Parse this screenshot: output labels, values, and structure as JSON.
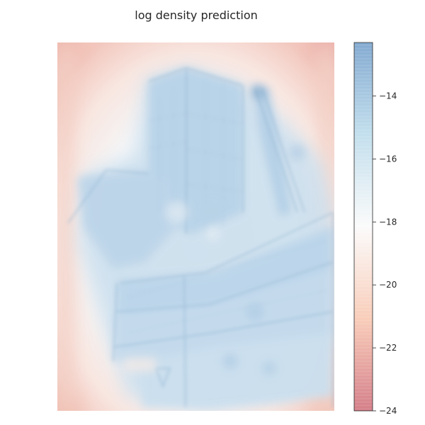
{
  "chart_data": {
    "type": "heatmap",
    "title": "log density prediction",
    "colormap": "RdBu (semi-transparent overlay on photograph)",
    "colorbar": {
      "range": [
        -24,
        -12.3
      ],
      "ticks": [
        -14,
        -16,
        -18,
        -20,
        -22,
        -24
      ],
      "tick_labels": [
        "−14",
        "−16",
        "−18",
        "−20",
        "−22",
        "−24"
      ],
      "colors": {
        "low": "#b2182b",
        "mid_low": "#f4a582",
        "mid": "#f7f7f7",
        "mid_high": "#92c5de",
        "high": "#2166ac"
      }
    },
    "image_content": "photograph of modern building with cantilevered sections and a crane-like tower, overlaid with density heatmap",
    "colors": {
      "sky_edge": "#f5d5cc",
      "building_high": "#a9c8e3",
      "building_mid": "#cfe0ee",
      "corner_low": "#e9a8a8"
    }
  }
}
